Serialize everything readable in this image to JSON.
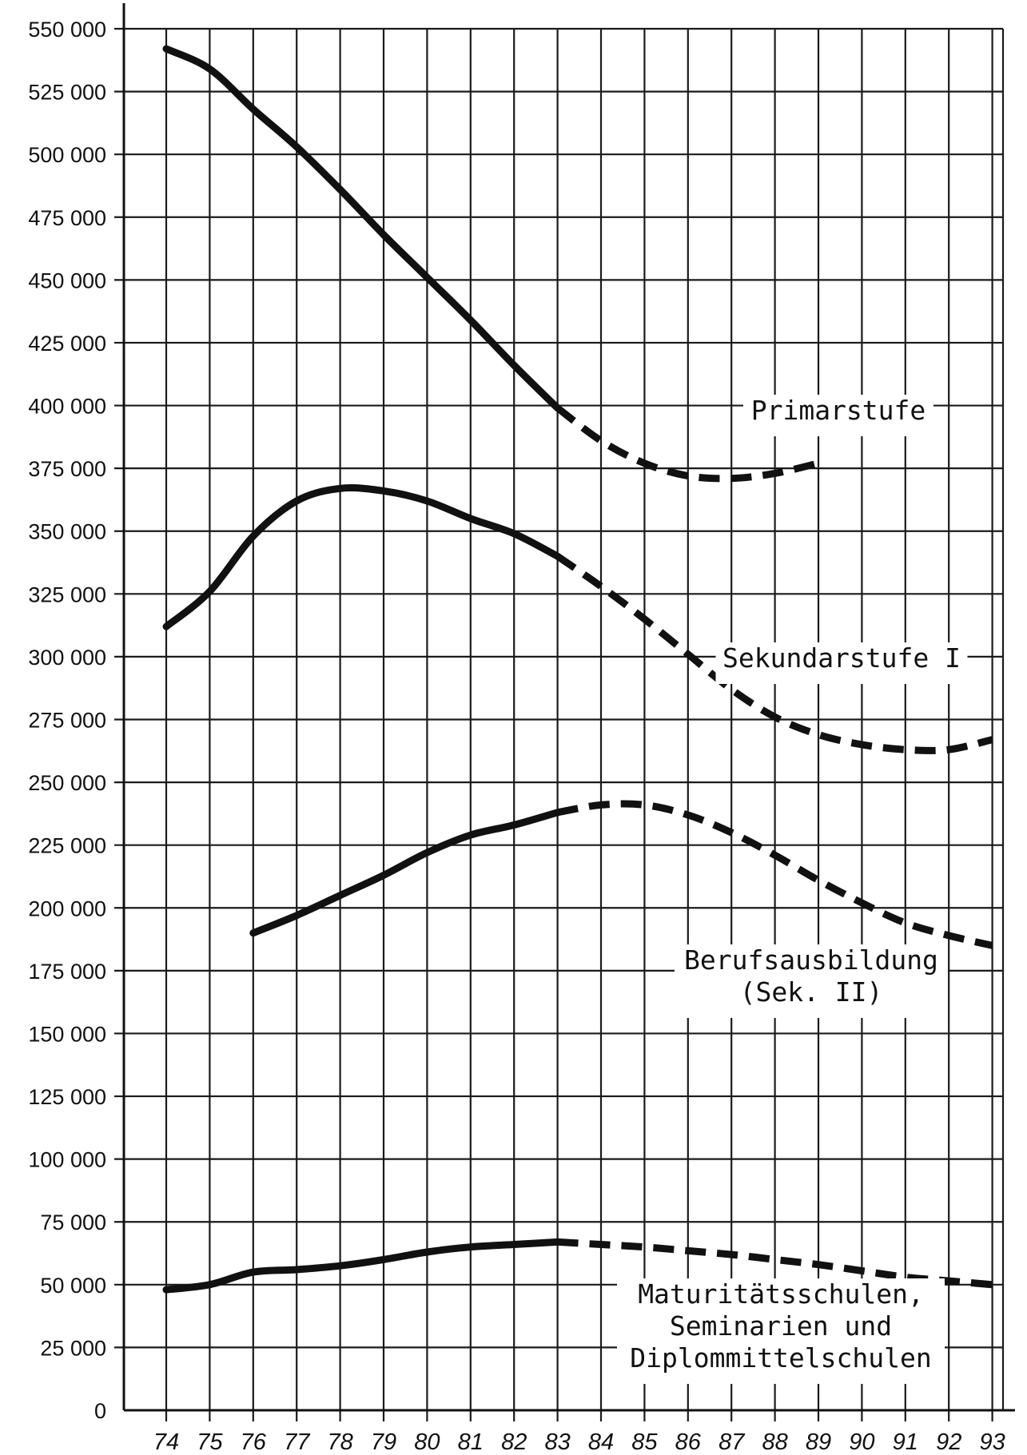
{
  "chart_data": {
    "type": "line",
    "title": "",
    "xlabel": "",
    "ylabel": "",
    "x": [
      74,
      75,
      76,
      77,
      78,
      79,
      80,
      81,
      82,
      83,
      84,
      85,
      86,
      87,
      88,
      89,
      90,
      91,
      92,
      93
    ],
    "x_tick_labels": [
      "74",
      "75",
      "76",
      "77",
      "78",
      "79",
      "80",
      "81",
      "82",
      "83",
      "84",
      "85",
      "86",
      "87",
      "88",
      "89",
      "90",
      "91",
      "92",
      "93"
    ],
    "ylim": [
      0,
      550000
    ],
    "y_tick_labels": [
      "0",
      "25 000",
      "50 000",
      "75 000",
      "100 000",
      "125 000",
      "150 000",
      "175 000",
      "200 000",
      "225 000",
      "250 000",
      "275 000",
      "300 000",
      "325 000",
      "350 000",
      "375 000",
      "400 000",
      "425 000",
      "450 000",
      "475 000",
      "500 000",
      "525 000",
      "550 000"
    ],
    "grid": true,
    "solid_until_x": 83,
    "line_style_note": "solid = actual values, dashed = forecast",
    "series": [
      {
        "name": "Primarstufe",
        "x": [
          74,
          75,
          76,
          77,
          78,
          79,
          80,
          81,
          82,
          83,
          84,
          85,
          86,
          87,
          88,
          89
        ],
        "values": [
          542000,
          534000,
          518000,
          503000,
          486000,
          468000,
          451000,
          434000,
          416000,
          399000,
          386000,
          377000,
          372000,
          371000,
          373000,
          377000
        ]
      },
      {
        "name": "Sekundarstufe I",
        "x": [
          74,
          75,
          76,
          77,
          78,
          79,
          80,
          81,
          82,
          83,
          84,
          85,
          86,
          87,
          88,
          89,
          90,
          91,
          92,
          93
        ],
        "values": [
          312000,
          326000,
          348000,
          362000,
          367000,
          366000,
          362000,
          355000,
          349000,
          340000,
          328000,
          315000,
          301000,
          287000,
          276000,
          269000,
          265000,
          263000,
          263000,
          267000
        ]
      },
      {
        "name": "Berufsausbildung (Sek. II)",
        "x": [
          76,
          77,
          78,
          79,
          80,
          81,
          82,
          83,
          84,
          85,
          86,
          87,
          88,
          89,
          90,
          91,
          92,
          93
        ],
        "values": [
          190000,
          197000,
          205000,
          213000,
          222000,
          229000,
          233000,
          238000,
          241000,
          241000,
          237000,
          230000,
          221000,
          211000,
          202000,
          194000,
          189000,
          185000
        ]
      },
      {
        "name": "Maturitätsschulen, Seminarien und Diplommittelschulen",
        "x": [
          74,
          75,
          76,
          77,
          78,
          79,
          80,
          81,
          82,
          83,
          84,
          85,
          86,
          87,
          88,
          89,
          90,
          91,
          92,
          93
        ],
        "values": [
          48000,
          50000,
          55000,
          56000,
          57500,
          60000,
          63000,
          65000,
          66000,
          67000,
          66000,
          65000,
          63500,
          62000,
          60000,
          58000,
          55500,
          53000,
          51500,
          50000
        ]
      }
    ],
    "annotations": [
      {
        "series": 0,
        "lines": [
          "Primarstufe"
        ]
      },
      {
        "series": 1,
        "lines": [
          "Sekundarstufe I"
        ]
      },
      {
        "series": 2,
        "lines": [
          "Berufsausbildung",
          "(Sek. II)"
        ]
      },
      {
        "series": 3,
        "lines": [
          "Maturitätsschulen,",
          "Seminarien und",
          "Diplommittelschulen"
        ]
      }
    ]
  }
}
